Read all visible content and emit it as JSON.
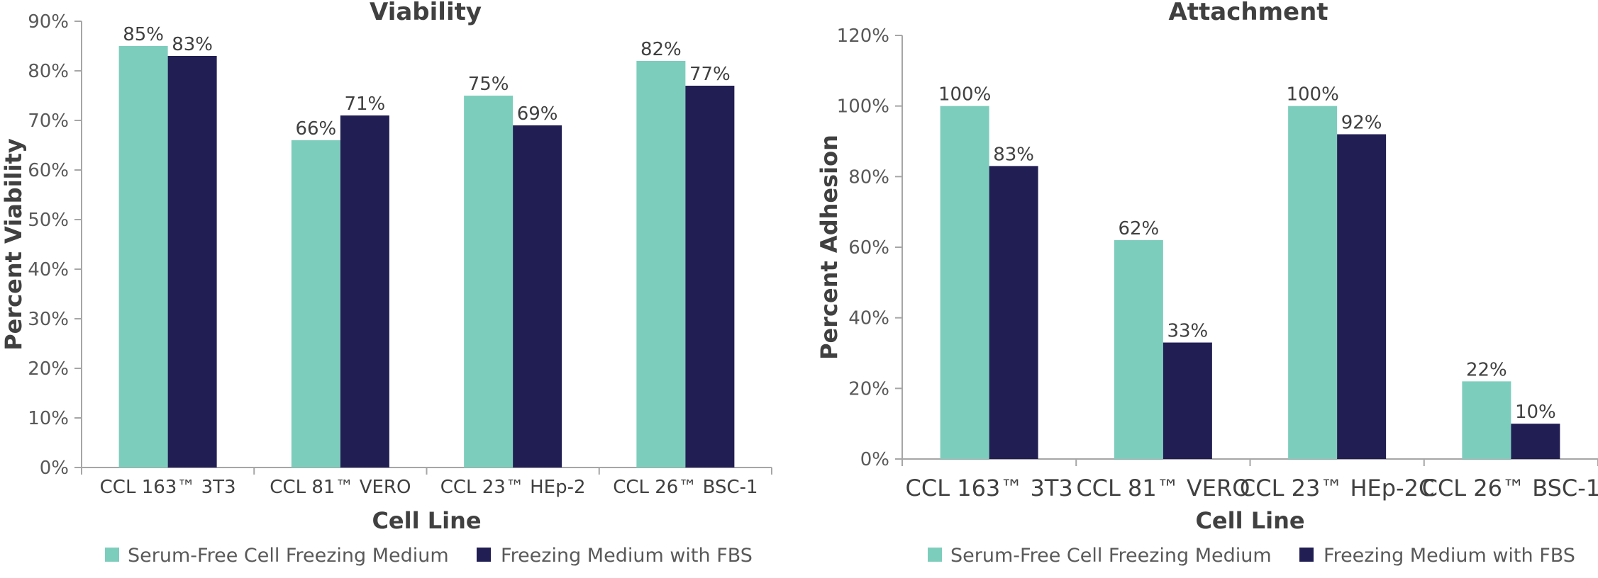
{
  "colors": {
    "serum_free": "#7dcdbd",
    "fbs": "#211e54",
    "axis": "#a6a6a6",
    "text": "#404040"
  },
  "chart_data": [
    {
      "type": "bar",
      "title": "Viability",
      "xlabel": "Cell Line",
      "ylabel": "Percent Viability",
      "ylim": [
        0,
        90
      ],
      "yticks": [
        0,
        10,
        20,
        30,
        40,
        50,
        60,
        70,
        80,
        90
      ],
      "ytick_labels": [
        "0%",
        "10%",
        "20%",
        "30%",
        "40%",
        "50%",
        "60%",
        "70%",
        "80%",
        "90%"
      ],
      "categories": [
        "CCL 163™ 3T3",
        "CCL 81™ VERO",
        "CCL 23™ HEp-2",
        "CCL 26™ BSC-1"
      ],
      "series": [
        {
          "name": "Serum-Free Cell Freezing Medium",
          "values": [
            85,
            66,
            75,
            82
          ],
          "labels": [
            "85%",
            "66%",
            "75%",
            "82%"
          ]
        },
        {
          "name": "Freezing Medium with FBS",
          "values": [
            83,
            71,
            69,
            77
          ],
          "labels": [
            "83%",
            "71%",
            "69%",
            "77%"
          ]
        }
      ],
      "grid": false,
      "legend": "bottom"
    },
    {
      "type": "bar",
      "title": "Attachment",
      "xlabel": "Cell Line",
      "ylabel": "Percent Adhesion",
      "ylim": [
        0,
        120
      ],
      "yticks": [
        0,
        20,
        40,
        60,
        80,
        100,
        120
      ],
      "ytick_labels": [
        "0%",
        "20%",
        "40%",
        "60%",
        "80%",
        "100%",
        "120%"
      ],
      "categories": [
        "CCL 163™ 3T3",
        "CCL 81™ VERO",
        "CCL 23™ HEp-2C",
        "CCL 26™ BSC-1"
      ],
      "series": [
        {
          "name": "Serum-Free Cell Freezing Medium",
          "values": [
            100,
            62,
            100,
            22
          ],
          "labels": [
            "100%",
            "62%",
            "100%",
            "22%"
          ]
        },
        {
          "name": "Freezing Medium with FBS",
          "values": [
            83,
            33,
            92,
            10
          ],
          "labels": [
            "83%",
            "33%",
            "92%",
            "10%"
          ]
        }
      ],
      "grid": false,
      "legend": "bottom"
    }
  ]
}
